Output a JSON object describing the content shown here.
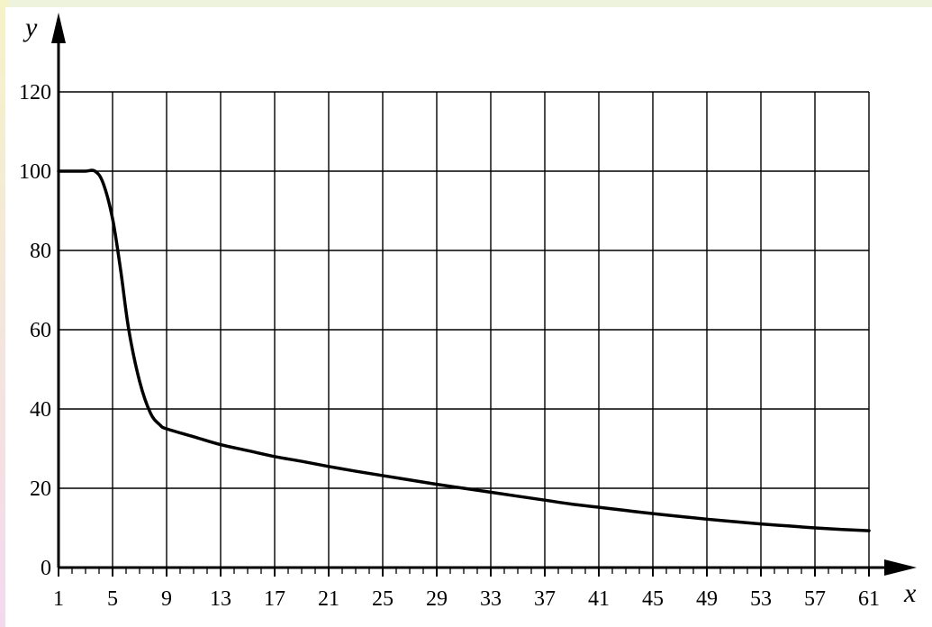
{
  "chart_data": {
    "type": "line",
    "xlabel": "x",
    "ylabel": "y",
    "xlim": [
      1,
      61
    ],
    "ylim": [
      0,
      120
    ],
    "grid": true,
    "x_ticks": [
      1,
      5,
      9,
      13,
      17,
      21,
      25,
      29,
      33,
      37,
      41,
      45,
      49,
      53,
      57,
      61
    ],
    "y_ticks": [
      0,
      20,
      40,
      60,
      80,
      100,
      120
    ],
    "x_tick_labels": [
      "1",
      "5",
      "9",
      "13",
      "17",
      "21",
      "25",
      "29",
      "33",
      "37",
      "41",
      "45",
      "49",
      "53",
      "57",
      "61"
    ],
    "y_tick_labels": [
      "0",
      "20",
      "40",
      "60",
      "80",
      "100",
      "120"
    ],
    "series": [
      {
        "x": [
          1,
          2,
          3,
          3.7,
          4.3,
          5,
          5.6,
          6.2,
          7,
          7.8,
          8.5,
          9,
          11,
          13,
          15,
          17,
          19,
          21,
          23,
          25,
          27,
          29,
          31,
          33,
          35,
          37,
          39,
          41,
          43,
          45,
          47,
          49,
          51,
          53,
          55,
          57,
          59,
          61
        ],
        "y": [
          100,
          100,
          100,
          100,
          97,
          88,
          75,
          60,
          47,
          39,
          36,
          35,
          33,
          31,
          29.5,
          28,
          26.8,
          25.5,
          24.3,
          23.2,
          22.1,
          21,
          20,
          19,
          18,
          17,
          16,
          15.2,
          14.4,
          13.6,
          12.9,
          12.2,
          11.6,
          11,
          10.5,
          10,
          9.6,
          9.3
        ]
      }
    ]
  }
}
